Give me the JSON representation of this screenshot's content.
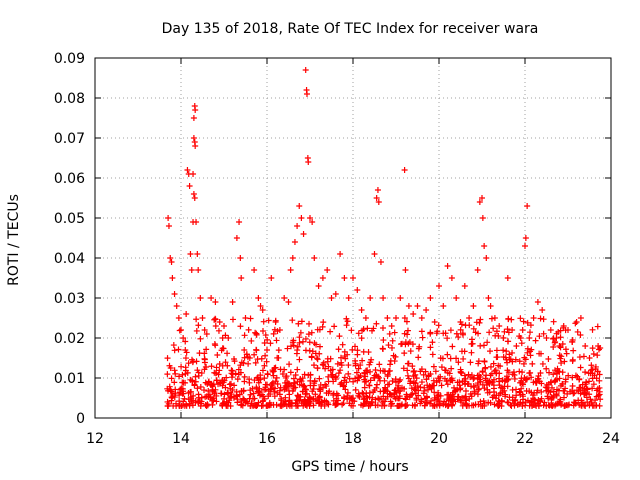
{
  "chart_data": {
    "type": "scatter",
    "title": "Day 135 of 2018, Rate Of TEC Index for receiver wara",
    "xlabel": "GPS time / hours",
    "ylabel": "ROTI / TECUs",
    "xlim": [
      12,
      24
    ],
    "ylim": [
      0,
      0.09
    ],
    "xticks": [
      12,
      14,
      16,
      18,
      20,
      22,
      24
    ],
    "yticks": [
      0,
      0.01,
      0.02,
      0.03,
      0.04,
      0.05,
      0.06,
      0.07,
      0.08,
      0.09
    ],
    "xtick_labels": [
      "12",
      "14",
      "16",
      "18",
      "20",
      "22",
      "24"
    ],
    "ytick_labels": [
      "0",
      "0.01",
      "0.02",
      "0.03",
      "0.04",
      "0.05",
      "0.06",
      "0.07",
      "0.08",
      "0.09"
    ],
    "grid": true,
    "marker": "+",
    "series": [
      {
        "name": "ROTI",
        "color": "#ff0000",
        "points": [
          [
            13.7,
            0.05
          ],
          [
            13.72,
            0.048
          ],
          [
            13.75,
            0.04
          ],
          [
            13.78,
            0.039
          ],
          [
            13.8,
            0.035
          ],
          [
            13.85,
            0.031
          ],
          [
            13.9,
            0.028
          ],
          [
            13.95,
            0.025
          ],
          [
            14.0,
            0.022
          ],
          [
            14.05,
            0.02
          ],
          [
            14.1,
            0.017
          ],
          [
            14.12,
            0.026
          ],
          [
            14.15,
            0.062
          ],
          [
            14.18,
            0.061
          ],
          [
            14.2,
            0.058
          ],
          [
            14.22,
            0.041
          ],
          [
            14.25,
            0.037
          ],
          [
            14.28,
            0.049
          ],
          [
            14.3,
            0.075
          ],
          [
            14.32,
            0.078
          ],
          [
            14.33,
            0.077
          ],
          [
            14.3,
            0.07
          ],
          [
            14.32,
            0.069
          ],
          [
            14.33,
            0.068
          ],
          [
            14.28,
            0.061
          ],
          [
            14.3,
            0.056
          ],
          [
            14.32,
            0.055
          ],
          [
            14.35,
            0.049
          ],
          [
            14.38,
            0.041
          ],
          [
            14.4,
            0.037
          ],
          [
            14.45,
            0.03
          ],
          [
            14.5,
            0.025
          ],
          [
            14.55,
            0.022
          ],
          [
            14.6,
            0.021
          ],
          [
            14.7,
            0.03
          ],
          [
            14.8,
            0.029
          ],
          [
            14.9,
            0.024
          ],
          [
            15.0,
            0.023
          ],
          [
            15.1,
            0.02
          ],
          [
            15.2,
            0.029
          ],
          [
            15.3,
            0.045
          ],
          [
            15.35,
            0.049
          ],
          [
            15.38,
            0.04
          ],
          [
            15.4,
            0.035
          ],
          [
            15.5,
            0.025
          ],
          [
            15.6,
            0.015
          ],
          [
            15.7,
            0.037
          ],
          [
            15.8,
            0.03
          ],
          [
            15.85,
            0.028
          ],
          [
            15.9,
            0.027
          ],
          [
            16.0,
            0.017
          ],
          [
            16.1,
            0.035
          ],
          [
            16.2,
            0.024
          ],
          [
            16.3,
            0.022
          ],
          [
            16.4,
            0.03
          ],
          [
            16.5,
            0.029
          ],
          [
            16.55,
            0.037
          ],
          [
            16.6,
            0.04
          ],
          [
            16.65,
            0.044
          ],
          [
            16.7,
            0.048
          ],
          [
            16.75,
            0.053
          ],
          [
            16.8,
            0.05
          ],
          [
            16.85,
            0.046
          ],
          [
            16.9,
            0.087
          ],
          [
            16.92,
            0.082
          ],
          [
            16.93,
            0.081
          ],
          [
            16.95,
            0.065
          ],
          [
            16.96,
            0.064
          ],
          [
            17.0,
            0.05
          ],
          [
            17.05,
            0.049
          ],
          [
            17.1,
            0.04
          ],
          [
            17.2,
            0.033
          ],
          [
            17.3,
            0.035
          ],
          [
            17.4,
            0.037
          ],
          [
            17.5,
            0.03
          ],
          [
            17.6,
            0.031
          ],
          [
            17.7,
            0.041
          ],
          [
            17.8,
            0.035
          ],
          [
            17.9,
            0.03
          ],
          [
            18.0,
            0.035
          ],
          [
            18.1,
            0.032
          ],
          [
            18.2,
            0.027
          ],
          [
            18.3,
            0.025
          ],
          [
            18.4,
            0.03
          ],
          [
            18.5,
            0.041
          ],
          [
            18.55,
            0.055
          ],
          [
            18.58,
            0.057
          ],
          [
            18.6,
            0.054
          ],
          [
            18.65,
            0.039
          ],
          [
            18.7,
            0.03
          ],
          [
            18.8,
            0.025
          ],
          [
            18.9,
            0.023
          ],
          [
            19.0,
            0.025
          ],
          [
            19.1,
            0.03
          ],
          [
            19.2,
            0.062
          ],
          [
            19.22,
            0.037
          ],
          [
            19.3,
            0.028
          ],
          [
            19.4,
            0.026
          ],
          [
            19.5,
            0.028
          ],
          [
            19.6,
            0.025
          ],
          [
            19.7,
            0.027
          ],
          [
            19.8,
            0.03
          ],
          [
            19.9,
            0.024
          ],
          [
            20.0,
            0.033
          ],
          [
            20.1,
            0.028
          ],
          [
            20.2,
            0.038
          ],
          [
            20.3,
            0.035
          ],
          [
            20.4,
            0.03
          ],
          [
            20.5,
            0.024
          ],
          [
            20.6,
            0.033
          ],
          [
            20.7,
            0.025
          ],
          [
            20.8,
            0.028
          ],
          [
            20.9,
            0.037
          ],
          [
            20.95,
            0.054
          ],
          [
            21.0,
            0.055
          ],
          [
            21.02,
            0.05
          ],
          [
            21.05,
            0.043
          ],
          [
            21.1,
            0.04
          ],
          [
            21.15,
            0.03
          ],
          [
            21.2,
            0.028
          ],
          [
            21.3,
            0.025
          ],
          [
            21.4,
            0.023
          ],
          [
            21.5,
            0.02
          ],
          [
            21.6,
            0.035
          ],
          [
            21.7,
            0.022
          ],
          [
            21.8,
            0.018
          ],
          [
            21.9,
            0.02
          ],
          [
            22.0,
            0.043
          ],
          [
            22.02,
            0.045
          ],
          [
            22.05,
            0.053
          ],
          [
            22.1,
            0.02
          ],
          [
            22.2,
            0.025
          ],
          [
            22.3,
            0.029
          ],
          [
            22.4,
            0.027
          ],
          [
            22.5,
            0.02
          ],
          [
            22.6,
            0.022
          ],
          [
            22.7,
            0.019
          ],
          [
            22.8,
            0.018
          ],
          [
            22.9,
            0.023
          ],
          [
            23.0,
            0.022
          ],
          [
            23.1,
            0.019
          ],
          [
            23.2,
            0.024
          ],
          [
            23.3,
            0.025
          ],
          [
            23.4,
            0.018
          ],
          [
            23.5,
            0.015
          ],
          [
            23.6,
            0.016
          ],
          [
            23.7,
            0.018
          ]
        ]
      }
    ]
  }
}
